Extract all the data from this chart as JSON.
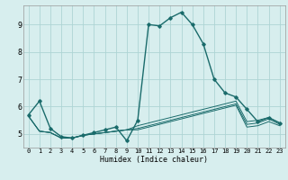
{
  "xlabel": "Humidex (Indice chaleur)",
  "bg_color": "#d7eeee",
  "grid_color": "#aed4d4",
  "line_color": "#1a6b6b",
  "xlim": [
    -0.5,
    23.5
  ],
  "ylim": [
    4.5,
    9.7
  ],
  "xticks": [
    0,
    1,
    2,
    3,
    4,
    5,
    6,
    7,
    8,
    9,
    10,
    11,
    12,
    13,
    14,
    15,
    16,
    17,
    18,
    19,
    20,
    21,
    22,
    23
  ],
  "yticks": [
    5,
    6,
    7,
    8,
    9
  ],
  "lines": [
    {
      "x": [
        0,
        1,
        2,
        3,
        4,
        5,
        6,
        7,
        8,
        9,
        10,
        11,
        12,
        13,
        14,
        15,
        16,
        17,
        18,
        19,
        20,
        21,
        22,
        23
      ],
      "y": [
        5.7,
        6.2,
        5.2,
        4.9,
        4.85,
        4.95,
        5.05,
        5.15,
        5.25,
        4.75,
        5.5,
        9.0,
        8.95,
        9.25,
        9.45,
        9.0,
        8.3,
        7.0,
        6.5,
        6.35,
        5.9,
        5.45,
        5.6,
        5.4
      ],
      "marker": true
    },
    {
      "x": [
        0,
        1,
        2,
        3,
        4,
        5,
        6,
        7,
        8,
        9,
        10,
        11,
        12,
        13,
        14,
        15,
        16,
        17,
        18,
        19,
        20,
        21,
        22,
        23
      ],
      "y": [
        5.65,
        5.1,
        5.05,
        4.85,
        4.85,
        4.95,
        5.0,
        5.05,
        5.1,
        5.15,
        5.3,
        5.4,
        5.5,
        5.6,
        5.7,
        5.8,
        5.9,
        6.0,
        6.1,
        6.2,
        5.45,
        5.5,
        5.6,
        5.4
      ],
      "marker": false
    },
    {
      "x": [
        0,
        1,
        2,
        3,
        4,
        5,
        6,
        7,
        8,
        9,
        10,
        11,
        12,
        13,
        14,
        15,
        16,
        17,
        18,
        19,
        20,
        21,
        22,
        23
      ],
      "y": [
        5.65,
        5.1,
        5.05,
        4.85,
        4.85,
        4.95,
        5.0,
        5.05,
        5.1,
        5.15,
        5.2,
        5.3,
        5.4,
        5.5,
        5.6,
        5.7,
        5.8,
        5.9,
        6.0,
        6.1,
        5.35,
        5.4,
        5.55,
        5.35
      ],
      "marker": false
    },
    {
      "x": [
        0,
        1,
        2,
        3,
        4,
        5,
        6,
        7,
        8,
        9,
        10,
        11,
        12,
        13,
        14,
        15,
        16,
        17,
        18,
        19,
        20,
        21,
        22,
        23
      ],
      "y": [
        5.65,
        5.1,
        5.05,
        4.85,
        4.85,
        4.95,
        5.0,
        5.05,
        5.1,
        5.15,
        5.15,
        5.25,
        5.35,
        5.45,
        5.55,
        5.65,
        5.75,
        5.85,
        5.95,
        6.05,
        5.25,
        5.3,
        5.45,
        5.3
      ],
      "marker": false
    }
  ]
}
